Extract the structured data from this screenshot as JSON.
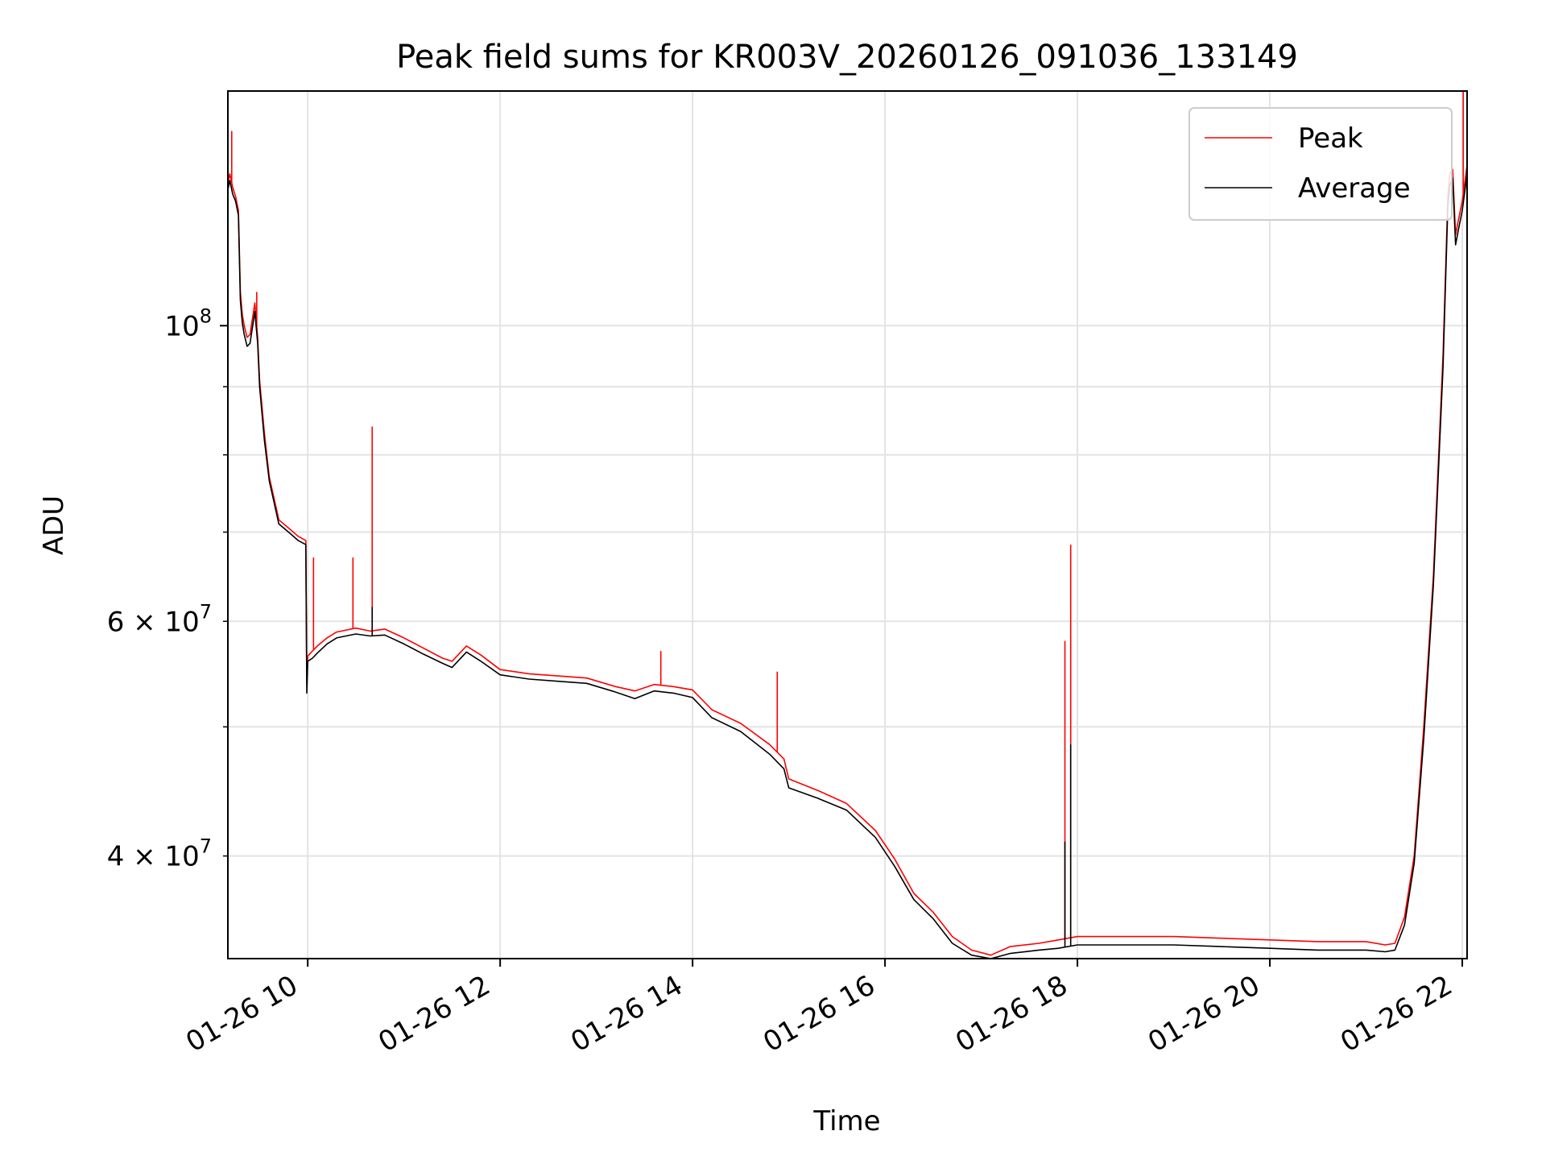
{
  "chart_data": {
    "type": "line",
    "title": "Peak field sums for KR003V_20260126_091036_133149",
    "xlabel": "Time",
    "ylabel": "ADU",
    "x_axis": {
      "type": "time",
      "unit": "hour",
      "start": 9.17,
      "end": 22.05
    },
    "y_axis": {
      "scale": "log",
      "ylim": [
        33500000,
        150000000
      ]
    },
    "xticks": [
      {
        "value": 10,
        "label": "01-26 10"
      },
      {
        "value": 12,
        "label": "01-26 12"
      },
      {
        "value": 14,
        "label": "01-26 14"
      },
      {
        "value": 16,
        "label": "01-26 16"
      },
      {
        "value": 18,
        "label": "01-26 18"
      },
      {
        "value": 20,
        "label": "01-26 20"
      },
      {
        "value": 22,
        "label": "01-26 22"
      }
    ],
    "yticks_major": [
      {
        "value": 100000000,
        "label": "10",
        "exp": "8"
      }
    ],
    "yticks_minor": [
      {
        "value": 40000000,
        "label": "4 × 10",
        "exp": "7"
      },
      {
        "value": 50000000,
        "label": "",
        "exp": ""
      },
      {
        "value": 60000000,
        "label": "6 × 10",
        "exp": "7"
      },
      {
        "value": 70000000,
        "label": "",
        "exp": ""
      },
      {
        "value": 80000000,
        "label": "",
        "exp": ""
      },
      {
        "value": 90000000,
        "label": "",
        "exp": ""
      }
    ],
    "grid": true,
    "legend": {
      "position": "top-right"
    },
    "series": [
      {
        "name": "Peak",
        "color": "#ff0000",
        "x": [
          9.17,
          9.19,
          9.22,
          9.25,
          9.28,
          9.3,
          9.32,
          9.34,
          9.37,
          9.4,
          9.45,
          9.48,
          9.5,
          9.55,
          9.6,
          9.7,
          9.8,
          9.9,
          9.98,
          9.99,
          10.0,
          10.05,
          10.1,
          10.2,
          10.3,
          10.5,
          10.65,
          10.8,
          11.0,
          11.2,
          11.4,
          11.5,
          11.65,
          11.8,
          12.0,
          12.3,
          12.6,
          12.9,
          13.2,
          13.4,
          13.6,
          13.8,
          14.0,
          14.2,
          14.5,
          14.8,
          14.95,
          15.0,
          15.3,
          15.6,
          15.9,
          16.1,
          16.3,
          16.5,
          16.7,
          16.9,
          17.1,
          17.3,
          17.6,
          17.8,
          18.0,
          18.5,
          19.0,
          19.5,
          20.0,
          20.5,
          21.0,
          21.2,
          21.3,
          21.4,
          21.5,
          21.6,
          21.7,
          21.8,
          21.85,
          21.87,
          21.9,
          21.93,
          21.96,
          22.0,
          22.05
        ],
        "y": [
          128000000,
          130000000,
          127000000,
          125000000,
          122000000,
          106000000,
          102000000,
          100000000,
          98000000,
          98500000,
          104000000,
          98000000,
          91000000,
          83000000,
          77000000,
          71500000,
          70500000,
          69500000,
          69000000,
          54000000,
          56500000,
          57000000,
          57500000,
          58300000,
          58900000,
          59300000,
          59000000,
          59200000,
          58300000,
          57300000,
          56300000,
          56000000,
          57500000,
          56600000,
          55200000,
          54800000,
          54600000,
          54400000,
          53600000,
          53200000,
          53800000,
          53600000,
          53300000,
          51500000,
          50300000,
          48500000,
          47300000,
          45700000,
          44800000,
          43800000,
          41800000,
          39800000,
          37500000,
          36300000,
          34800000,
          34000000,
          33700000,
          34200000,
          34400000,
          34600000,
          34800000,
          34800000,
          34800000,
          34700000,
          34600000,
          34500000,
          34500000,
          34300000,
          34400000,
          36000000,
          40000000,
          50000000,
          65000000,
          95000000,
          125000000,
          130000000,
          131000000,
          117000000,
          120000000,
          124000000,
          132000000
        ],
        "spikes": [
          {
            "x": 9.21,
            "y": 140000000
          },
          {
            "x": 9.47,
            "y": 106000000
          },
          {
            "x": 10.06,
            "y": 67000000
          },
          {
            "x": 10.47,
            "y": 67000000
          },
          {
            "x": 10.67,
            "y": 84000000
          },
          {
            "x": 13.67,
            "y": 57000000
          },
          {
            "x": 14.88,
            "y": 55000000
          },
          {
            "x": 17.87,
            "y": 58000000
          },
          {
            "x": 17.93,
            "y": 68500000
          },
          {
            "x": 22.01,
            "y": 150000000
          }
        ]
      },
      {
        "name": "Average",
        "color": "#000000",
        "x": [
          9.17,
          9.19,
          9.22,
          9.25,
          9.28,
          9.3,
          9.32,
          9.34,
          9.37,
          9.4,
          9.45,
          9.48,
          9.5,
          9.55,
          9.6,
          9.7,
          9.8,
          9.9,
          9.98,
          9.99,
          10.0,
          10.05,
          10.1,
          10.2,
          10.3,
          10.5,
          10.65,
          10.8,
          11.0,
          11.2,
          11.4,
          11.5,
          11.65,
          11.8,
          12.0,
          12.3,
          12.6,
          12.9,
          13.2,
          13.4,
          13.6,
          13.8,
          14.0,
          14.2,
          14.5,
          14.8,
          14.95,
          15.0,
          15.3,
          15.6,
          15.9,
          16.1,
          16.3,
          16.5,
          16.7,
          16.9,
          17.1,
          17.3,
          17.6,
          17.8,
          18.0,
          18.5,
          19.0,
          19.5,
          20.0,
          20.5,
          21.0,
          21.2,
          21.3,
          21.4,
          21.5,
          21.6,
          21.7,
          21.8,
          21.85,
          21.87,
          21.9,
          21.93,
          21.96,
          22.0,
          22.05
        ],
        "y": [
          126500000,
          128500000,
          125500000,
          124000000,
          121000000,
          104500000,
          100500000,
          98500000,
          96500000,
          97000000,
          102500000,
          97000000,
          90000000,
          82000000,
          76500000,
          71000000,
          70000000,
          69000000,
          68500000,
          53000000,
          56000000,
          56300000,
          56800000,
          57700000,
          58300000,
          58700000,
          58500000,
          58600000,
          57700000,
          56700000,
          55800000,
          55400000,
          56900000,
          56000000,
          54700000,
          54300000,
          54100000,
          53900000,
          53100000,
          52500000,
          53200000,
          53000000,
          52600000,
          50800000,
          49600000,
          47700000,
          46500000,
          45000000,
          44200000,
          43300000,
          41300000,
          39300000,
          37100000,
          35900000,
          34400000,
          33700000,
          33500000,
          33800000,
          34000000,
          34100000,
          34300000,
          34300000,
          34300000,
          34200000,
          34100000,
          34000000,
          34000000,
          33900000,
          34000000,
          35500000,
          39500000,
          49000000,
          64000000,
          93000000,
          123000000,
          127500000,
          129000000,
          115000000,
          118000000,
          122000000,
          130000000
        ],
        "spikes": [
          {
            "x": 10.67,
            "y": 61500000
          },
          {
            "x": 17.87,
            "y": 41000000
          },
          {
            "x": 17.93,
            "y": 48500000
          }
        ]
      }
    ]
  }
}
